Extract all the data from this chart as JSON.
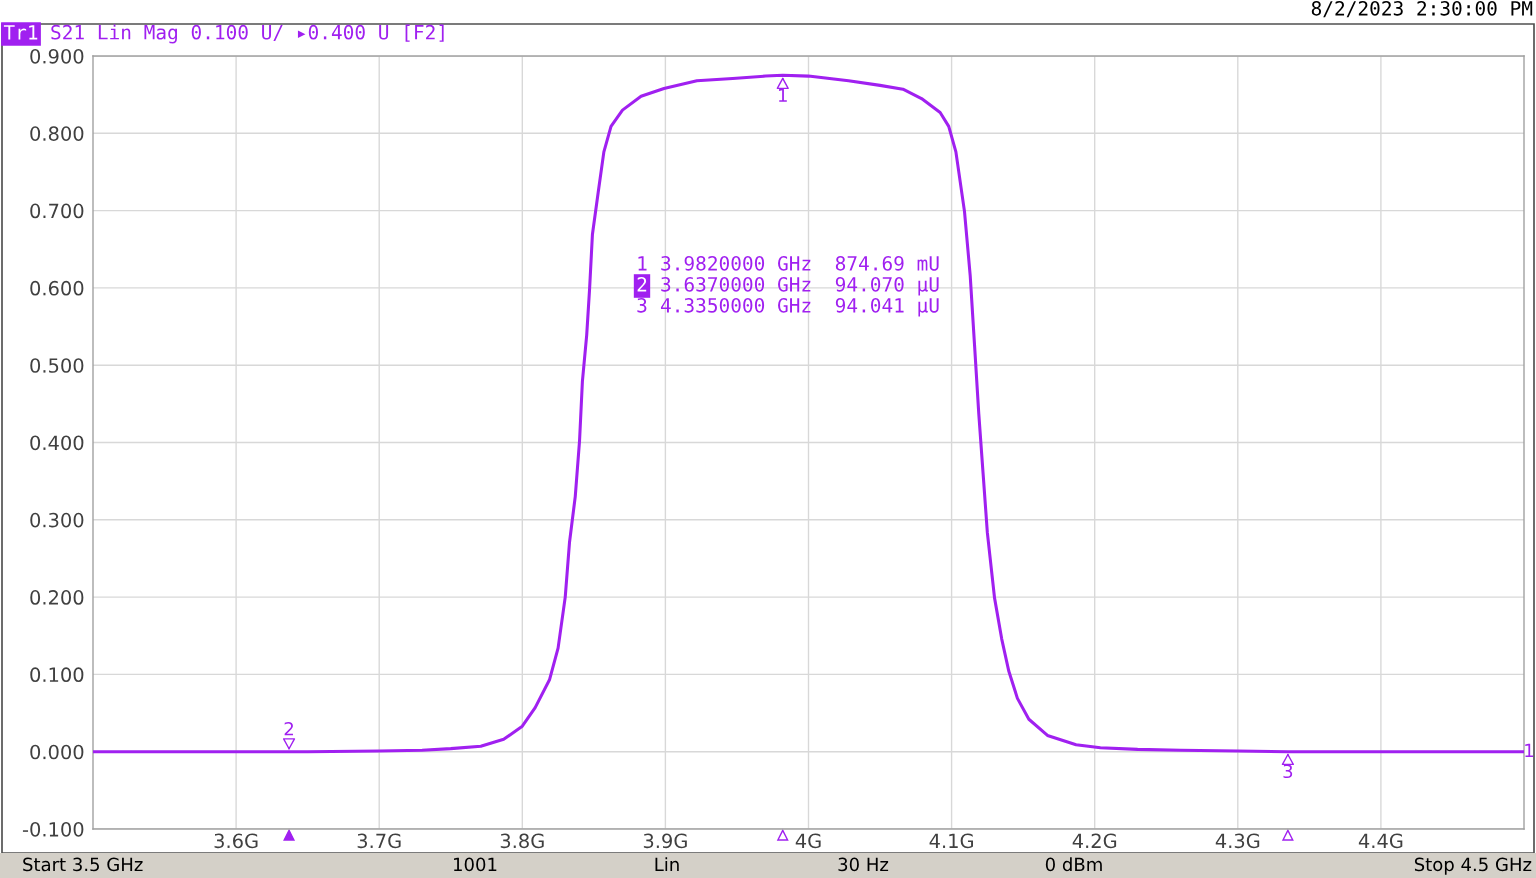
{
  "chart_data": {
    "type": "line",
    "title": "S21 Lin Mag 0.100 U/ ▸0.400 U [F2]",
    "x": [
      3.5,
      3.55,
      3.6,
      3.637,
      3.65,
      3.7,
      3.73,
      3.75,
      3.771,
      3.787,
      3.8,
      3.809,
      3.819,
      3.825,
      3.83,
      3.833,
      3.837,
      3.84,
      3.842,
      3.845,
      3.847,
      3.849,
      3.853,
      3.857,
      3.862,
      3.87,
      3.883,
      3.899,
      3.922,
      3.947,
      3.97,
      3.982,
      4.0,
      4.028,
      4.05,
      4.066,
      4.079,
      4.092,
      4.098,
      4.103,
      4.109,
      4.113,
      4.116,
      4.119,
      4.122,
      4.125,
      4.13,
      4.135,
      4.14,
      4.146,
      4.154,
      4.167,
      4.187,
      4.204,
      4.23,
      4.26,
      4.3,
      4.335,
      4.4,
      4.45,
      4.5
    ],
    "series": [
      {
        "color": "#a020f0",
        "values": [
          0.0,
          0.0,
          0.0,
          0.0,
          0.0,
          0.001,
          0.002,
          0.004,
          0.007,
          0.016,
          0.033,
          0.057,
          0.093,
          0.134,
          0.2,
          0.271,
          0.33,
          0.402,
          0.479,
          0.539,
          0.598,
          0.669,
          0.723,
          0.776,
          0.809,
          0.83,
          0.848,
          0.858,
          0.868,
          0.871,
          0.874,
          0.875,
          0.874,
          0.868,
          0.862,
          0.857,
          0.845,
          0.827,
          0.809,
          0.776,
          0.699,
          0.616,
          0.527,
          0.437,
          0.36,
          0.283,
          0.199,
          0.146,
          0.104,
          0.069,
          0.042,
          0.021,
          0.009,
          0.005,
          0.003,
          0.002,
          0.001,
          0.0,
          0.0,
          0.0,
          0.0
        ]
      }
    ],
    "xlim": [
      3.5,
      4.5
    ],
    "ylim": [
      -0.1,
      0.9
    ],
    "xticks": [
      {
        "value": 3.6,
        "label": "3.6G"
      },
      {
        "value": 3.7,
        "label": "3.7G"
      },
      {
        "value": 3.8,
        "label": "3.8G"
      },
      {
        "value": 3.9,
        "label": "3.9G"
      },
      {
        "value": 4.0,
        "label": "4G"
      },
      {
        "value": 4.1,
        "label": "4.1G"
      },
      {
        "value": 4.2,
        "label": "4.2G"
      },
      {
        "value": 4.3,
        "label": "4.3G"
      },
      {
        "value": 4.4,
        "label": "4.4G"
      }
    ],
    "yticks": [
      {
        "value": -0.1,
        "label": "-0.100"
      },
      {
        "value": 0.0,
        "label": "0.000"
      },
      {
        "value": 0.1,
        "label": "0.100"
      },
      {
        "value": 0.2,
        "label": "0.200"
      },
      {
        "value": 0.3,
        "label": "0.300"
      },
      {
        "value": 0.4,
        "label": "0.400"
      },
      {
        "value": 0.5,
        "label": "0.500"
      },
      {
        "value": 0.6,
        "label": "0.600"
      },
      {
        "value": 0.7,
        "label": "0.700"
      },
      {
        "value": 0.8,
        "label": "0.800"
      },
      {
        "value": 0.9,
        "label": "0.900"
      }
    ],
    "grid": true,
    "annotations": [
      "Tr1",
      "8/2/2023 2:30:00 PM",
      {
        "text": "1",
        "x": 3.982,
        "y": 0.87469
      },
      {
        "text": "2",
        "x": 3.637,
        "y": 9.407e-05
      },
      {
        "text": "3",
        "x": 4.335,
        "y": 9.4041e-05
      },
      "1",
      "3.9820000 GHz",
      "874.69 mU",
      "2",
      "3.6370000 GHz",
      "94.070 µU",
      "3",
      "4.3350000 GHz",
      "94.041 µU",
      "1",
      "Start 3.5 GHz",
      "1001",
      "Lin",
      "30 Hz",
      "0 dBm",
      "Stop 4.5 GHz"
    ]
  }
}
